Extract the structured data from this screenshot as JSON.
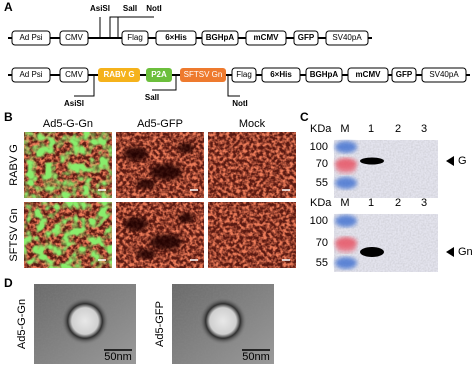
{
  "panels": {
    "a": "A",
    "b": "B",
    "c": "C",
    "d": "D"
  },
  "construct1": {
    "boxes": [
      "Ad Psi",
      "CMV",
      "Flag",
      "6×His",
      "BGHpA",
      "mCMV",
      "GFP",
      "SV40pA"
    ],
    "sites": [
      "AsiSI",
      "SalI",
      "NotI"
    ]
  },
  "construct2": {
    "boxes": [
      "Ad Psi",
      "CMV",
      "RABV G",
      "P2A",
      "SFTSV Gn",
      "Flag",
      "6×His",
      "BGHpA",
      "mCMV",
      "GFP",
      "SV40pA"
    ],
    "sites": [
      "AsiSI",
      "SalI",
      "NotI"
    ]
  },
  "microscopy": {
    "columns": [
      "Ad5-G-Gn",
      "Ad5-GFP",
      "Mock"
    ],
    "rows": [
      "RABV G",
      "SFTSV Gn"
    ]
  },
  "blots": [
    {
      "unit": "KDa",
      "lanes": [
        "M",
        "1",
        "2",
        "3"
      ],
      "markers": [
        "100",
        "70",
        "55"
      ],
      "band": "G"
    },
    {
      "unit": "KDa",
      "lanes": [
        "M",
        "1",
        "2",
        "3"
      ],
      "markers": [
        "100",
        "70",
        "55"
      ],
      "band": "Gn"
    }
  ],
  "em": {
    "samples": [
      "Ad5-G-Gn",
      "Ad5-GFP"
    ],
    "scale": [
      "50nm",
      "50nm"
    ]
  }
}
